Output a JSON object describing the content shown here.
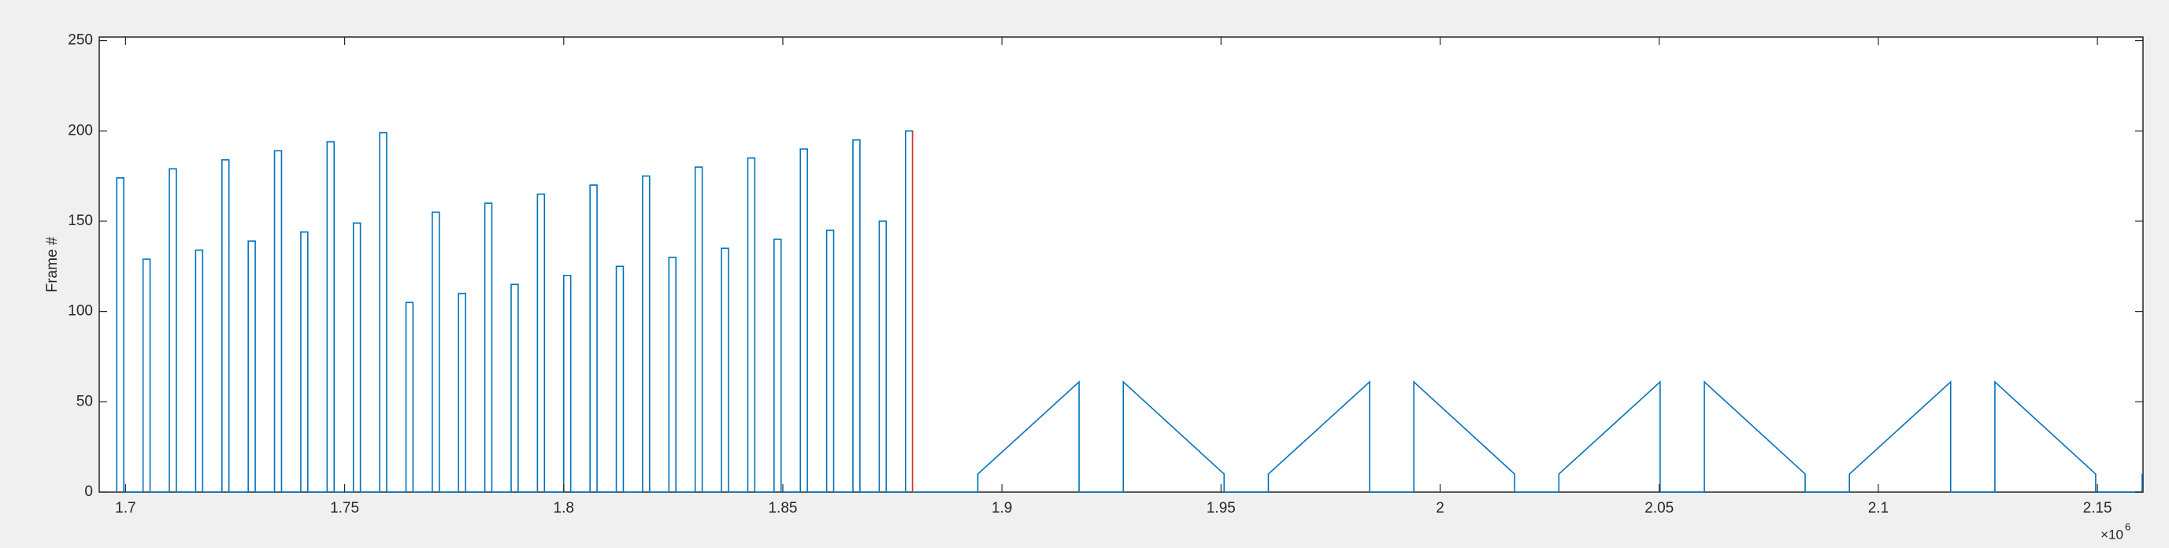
{
  "chart_data": {
    "type": "line",
    "ylabel": "Frame #",
    "x_multiplier": {
      "base": "×10",
      "exponent": "6"
    },
    "xlim": [
      1.694,
      2.1604
    ],
    "ylim": [
      0,
      252
    ],
    "xticks": [
      1.7,
      1.75,
      1.8,
      1.85,
      1.9,
      1.95,
      2,
      2.05,
      2.1,
      2.15
    ],
    "yticks": [
      0,
      50,
      100,
      150,
      200,
      250
    ],
    "grid": false,
    "series": [
      {
        "color": "#0072bd",
        "x": [
          1.698,
          1.698,
          1.6996,
          1.6996,
          1.704,
          1.704,
          1.7056,
          1.7056,
          1.71,
          1.71,
          1.7116,
          1.7116,
          1.716,
          1.716,
          1.7176,
          1.7176,
          1.722,
          1.722,
          1.7236,
          1.7236,
          1.728,
          1.728,
          1.7296,
          1.7296,
          1.734,
          1.734,
          1.7356,
          1.7356,
          1.74,
          1.74,
          1.7416,
          1.7416,
          1.746,
          1.746,
          1.7476,
          1.7476,
          1.752,
          1.752,
          1.7536,
          1.7536,
          1.758,
          1.758,
          1.7596,
          1.7596,
          1.764,
          1.764,
          1.7656,
          1.7656,
          1.77,
          1.77,
          1.7716,
          1.7716,
          1.776,
          1.776,
          1.7776,
          1.7776,
          1.782,
          1.782,
          1.7836,
          1.7836,
          1.788,
          1.788,
          1.7896,
          1.7896,
          1.794,
          1.794,
          1.7956,
          1.7956,
          1.8,
          1.8,
          1.8016,
          1.8016,
          1.806,
          1.806,
          1.8076,
          1.8076,
          1.812,
          1.812,
          1.8136,
          1.8136,
          1.818,
          1.818,
          1.8196,
          1.8196,
          1.824,
          1.824,
          1.8256,
          1.8256,
          1.83,
          1.83,
          1.8316,
          1.8316,
          1.836,
          1.836,
          1.8376,
          1.8376,
          1.842,
          1.842,
          1.8436,
          1.8436,
          1.848,
          1.848,
          1.8496,
          1.8496,
          1.854,
          1.854,
          1.8556,
          1.8556,
          1.86,
          1.86,
          1.8616,
          1.8616,
          1.866,
          1.866,
          1.8676,
          1.8676,
          1.872,
          1.872,
          1.8736,
          1.8736,
          1.878,
          1.878,
          1.8796,
          1.8796,
          1.8945,
          1.8945,
          1.9176,
          1.9176,
          1.9277,
          1.9277,
          1.9507,
          1.9507,
          1.9608,
          1.9608,
          1.9839,
          1.9839,
          1.994,
          1.994,
          2.017,
          2.017,
          2.0271,
          2.0271,
          2.0502,
          2.0502,
          2.0603,
          2.0603,
          2.0833,
          2.0833,
          2.0934,
          2.0934,
          2.1165,
          2.1165,
          2.1266,
          2.1266,
          2.1496,
          2.1496,
          2.1602,
          2.1602
        ],
        "values": [
          0,
          174,
          174,
          0,
          0,
          129,
          129,
          0,
          0,
          179,
          179,
          0,
          0,
          134,
          134,
          0,
          0,
          184,
          184,
          0,
          0,
          139,
          139,
          0,
          0,
          189,
          189,
          0,
          0,
          144,
          144,
          0,
          0,
          194,
          194,
          0,
          0,
          149,
          149,
          0,
          0,
          199,
          199,
          0,
          0,
          105,
          105,
          0,
          0,
          155,
          155,
          0,
          0,
          110,
          110,
          0,
          0,
          160,
          160,
          0,
          0,
          115,
          115,
          0,
          0,
          165,
          165,
          0,
          0,
          120,
          120,
          0,
          0,
          170,
          170,
          0,
          0,
          125,
          125,
          0,
          0,
          175,
          175,
          0,
          0,
          130,
          130,
          0,
          0,
          180,
          180,
          0,
          0,
          135,
          135,
          0,
          0,
          185,
          185,
          0,
          0,
          140,
          140,
          0,
          0,
          190,
          190,
          0,
          0,
          145,
          145,
          0,
          0,
          195,
          195,
          0,
          0,
          150,
          150,
          0,
          0,
          200,
          200,
          0,
          0,
          10,
          61,
          0,
          0,
          61,
          10,
          0,
          0,
          10,
          61,
          0,
          0,
          61,
          10,
          0,
          0,
          10,
          61,
          0,
          0,
          61,
          10,
          0,
          0,
          10,
          61,
          0,
          0,
          61,
          10,
          0,
          0,
          10
        ]
      },
      {
        "color": "#e0312a",
        "x": [
          1.8796,
          1.8796
        ],
        "values": [
          0,
          200
        ]
      }
    ]
  }
}
